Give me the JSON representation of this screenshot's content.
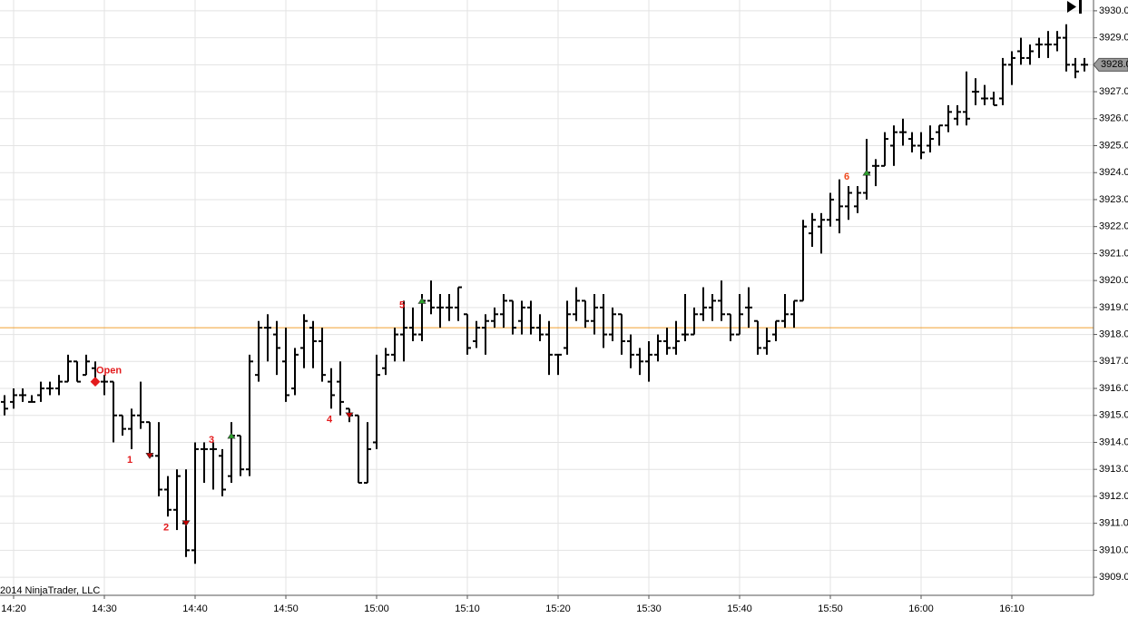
{
  "chart_data": {
    "type": "ohlc",
    "x": [
      "14:19",
      "14:20",
      "14:21",
      "14:22",
      "14:23",
      "14:24",
      "14:25",
      "14:26",
      "14:27",
      "14:28",
      "14:29",
      "14:30",
      "14:31",
      "14:32",
      "14:33",
      "14:34",
      "14:35",
      "14:36",
      "14:37",
      "14:38",
      "14:39",
      "14:40",
      "14:41",
      "14:42",
      "14:43",
      "14:44",
      "14:45",
      "14:46",
      "14:47",
      "14:48",
      "14:49",
      "14:50",
      "14:51",
      "14:52",
      "14:53",
      "14:54",
      "14:55",
      "14:56",
      "14:57",
      "14:58",
      "14:59",
      "15:00",
      "15:01",
      "15:02",
      "15:03",
      "15:04",
      "15:05",
      "15:06",
      "15:07",
      "15:08",
      "15:09",
      "15:10",
      "15:11",
      "15:12",
      "15:13",
      "15:14",
      "15:15",
      "15:16",
      "15:17",
      "15:18",
      "15:19",
      "15:20",
      "15:21",
      "15:22",
      "15:23",
      "15:24",
      "15:25",
      "15:26",
      "15:27",
      "15:28",
      "15:29",
      "15:30",
      "15:31",
      "15:32",
      "15:33",
      "15:34",
      "15:35",
      "15:36",
      "15:37",
      "15:38",
      "15:39",
      "15:40",
      "15:41",
      "15:42",
      "15:43",
      "15:44",
      "15:45",
      "15:46",
      "15:47",
      "15:48",
      "15:49",
      "15:50",
      "15:51",
      "15:52",
      "15:53",
      "15:54",
      "15:55",
      "15:56",
      "15:57",
      "15:58",
      "15:59",
      "16:00",
      "16:01",
      "16:02",
      "16:03",
      "16:04",
      "16:05",
      "16:06",
      "16:07",
      "16:08",
      "16:09",
      "16:10",
      "16:11",
      "16:12",
      "16:13",
      "16:14",
      "16:15",
      "16:16",
      "16:17",
      "16:18"
    ],
    "open": [
      3915.5,
      3915.5,
      3915.75,
      3915.5,
      3915.75,
      3916,
      3916,
      3916.25,
      3917,
      3916.5,
      3916.75,
      3916.25,
      3916.25,
      3915,
      3914.5,
      3915,
      3914.75,
      3913.5,
      3912.25,
      3911.5,
      3911,
      3910,
      3913.75,
      3913.75,
      3913.5,
      3912.75,
      3914.25,
      3913,
      3916.5,
      3918.25,
      3918,
      3917,
      3916,
      3917.5,
      3918.25,
      3917.75,
      3916.25,
      3916.25,
      3915.25,
      3915,
      3912.5,
      3914,
      3916.75,
      3917.25,
      3918,
      3918.25,
      3918,
      3919.25,
      3919,
      3919,
      3919,
      3918.75,
      3917.75,
      3918.25,
      3918.5,
      3918.75,
      3919.25,
      3918.5,
      3919,
      3918.25,
      3918,
      3917.25,
      3917.5,
      3918.75,
      3919.25,
      3918.5,
      3919,
      3918,
      3918.75,
      3917.75,
      3917.25,
      3917,
      3917.25,
      3917.75,
      3917.5,
      3918,
      3918,
      3918.75,
      3919,
      3919.25,
      3918.75,
      3918,
      3919,
      3918.5,
      3917.5,
      3918,
      3918.5,
      3918.75,
      3919.25,
      3921.75,
      3922,
      3922.25,
      3922.25,
      3922.75,
      3922.75,
      3923.25,
      3924.25,
      3924.25,
      3925,
      3925.5,
      3925.25,
      3925,
      3925,
      3925.5,
      3925.75,
      3926,
      3926.25,
      3927,
      3926.75,
      3926.75,
      3926.75,
      3928,
      3928.5,
      3928.25,
      3928.75,
      3928.75,
      3928.75,
      3929,
      3928,
      3928
    ],
    "high": [
      3915.75,
      3916,
      3916,
      3915.75,
      3916.25,
      3916.25,
      3916.5,
      3917.25,
      3917,
      3917.25,
      3917,
      3916.5,
      3916.25,
      3915,
      3915.25,
      3916.25,
      3914.75,
      3914.75,
      3912.75,
      3913,
      3913,
      3914,
      3914,
      3914,
      3913.75,
      3914.75,
      3914.25,
      3917.25,
      3918.5,
      3918.75,
      3918.5,
      3918.25,
      3917.5,
      3918.75,
      3918.5,
      3918.25,
      3916.75,
      3917,
      3915.25,
      3915,
      3914.75,
      3917.25,
      3917.5,
      3918.25,
      3919.25,
      3919,
      3919.5,
      3920,
      3919.5,
      3919.5,
      3919.75,
      3918.75,
      3918.5,
      3918.75,
      3919,
      3919.5,
      3919.25,
      3919.25,
      3919.25,
      3918.75,
      3918.5,
      3917.25,
      3919.25,
      3919.75,
      3919.25,
      3919.5,
      3919.5,
      3919,
      3918.75,
      3918,
      3917.5,
      3917.75,
      3918,
      3918.25,
      3918.5,
      3919.5,
      3919,
      3919.75,
      3919.5,
      3920,
      3918.75,
      3919.5,
      3919.75,
      3918.5,
      3918.25,
      3918.5,
      3919.5,
      3919.25,
      3922.25,
      3922.5,
      3922.5,
      3923.25,
      3923.75,
      3923.5,
      3923.5,
      3925.25,
      3924.5,
      3925.5,
      3925.75,
      3926,
      3925.5,
      3925.5,
      3925.75,
      3925.75,
      3926.5,
      3926.5,
      3927.75,
      3927.5,
      3927.25,
      3927,
      3928.25,
      3928.5,
      3929,
      3928.75,
      3929,
      3929.25,
      3929.25,
      3929.5,
      3928.25,
      3928.25
    ],
    "low": [
      3915,
      3915.25,
      3915.5,
      3915.5,
      3915.5,
      3915.75,
      3915.75,
      3916.25,
      3916.25,
      3916.5,
      3916.25,
      3915.75,
      3914,
      3914.25,
      3913.75,
      3914.5,
      3913.5,
      3912,
      3911.25,
      3910.75,
      3909.75,
      3909.5,
      3912.5,
      3912.25,
      3912,
      3912.5,
      3912.75,
      3912.75,
      3916.25,
      3917,
      3916.5,
      3915.5,
      3915.75,
      3916.75,
      3916.75,
      3916.25,
      3915.25,
      3915,
      3914.75,
      3912.5,
      3912.5,
      3913.75,
      3916.5,
      3917,
      3917,
      3917.75,
      3917.75,
      3918.75,
      3918.25,
      3918.5,
      3918.5,
      3917.25,
      3917.5,
      3917.25,
      3918.25,
      3918.25,
      3918,
      3918,
      3918,
      3917.75,
      3916.5,
      3916.5,
      3917.25,
      3918.5,
      3918.25,
      3918,
      3917.5,
      3917.75,
      3917.25,
      3916.75,
      3916.5,
      3916.25,
      3917,
      3917.25,
      3917.25,
      3917.75,
      3918,
      3918.5,
      3918.5,
      3918.5,
      3917.75,
      3918,
      3918.25,
      3917.25,
      3917.25,
      3917.75,
      3918.25,
      3918.25,
      3919.25,
      3921.25,
      3921,
      3922,
      3921.75,
      3922.25,
      3922.5,
      3923,
      3923.5,
      3924.25,
      3924.25,
      3925,
      3924.75,
      3924.5,
      3924.75,
      3925,
      3925.5,
      3925.75,
      3925.75,
      3926.5,
      3926.5,
      3926.5,
      3926.5,
      3927.25,
      3928,
      3928,
      3928.25,
      3928.25,
      3928.5,
      3927.75,
      3927.5,
      3927.75
    ],
    "close": [
      3915.25,
      3915.75,
      3915.75,
      3915.5,
      3916,
      3916,
      3916.25,
      3917,
      3916.25,
      3917,
      3916.25,
      3916.25,
      3915,
      3914.5,
      3915,
      3914.75,
      3913.5,
      3912.25,
      3911.5,
      3912.75,
      3910,
      3913.75,
      3913.75,
      3913.75,
      3912.25,
      3914.25,
      3913,
      3917,
      3918.25,
      3918.25,
      3917.5,
      3915.75,
      3917.25,
      3918.5,
      3917.75,
      3916.5,
      3915.75,
      3915.5,
      3915,
      3912.5,
      3913.75,
      3916.5,
      3917.25,
      3918,
      3918.25,
      3918,
      3919.25,
      3919,
      3919,
      3919,
      3919.75,
      3917.5,
      3918.25,
      3918.5,
      3918.75,
      3919.25,
      3918.25,
      3919,
      3918.25,
      3918,
      3917.25,
      3917.25,
      3918.75,
      3919.25,
      3918.5,
      3919,
      3918,
      3918.75,
      3917.75,
      3917.25,
      3917,
      3917.25,
      3917.75,
      3917.5,
      3917.75,
      3918,
      3918.75,
      3919,
      3919.25,
      3918.75,
      3918,
      3918.75,
      3919,
      3917.5,
      3917.75,
      3918.5,
      3918.75,
      3919.25,
      3922,
      3922.25,
      3922.25,
      3923,
      3922.75,
      3923.25,
      3923.25,
      3924,
      3924.25,
      3925.25,
      3925.5,
      3925.5,
      3925,
      3924.75,
      3925.25,
      3925.75,
      3926.25,
      3926.25,
      3926,
      3927,
      3926.75,
      3926.5,
      3928,
      3928.25,
      3928.25,
      3928.5,
      3928.75,
      3928.75,
      3929,
      3928,
      3927.75,
      3928
    ],
    "color": "#000000",
    "xlim": [
      "14:19",
      "16:19"
    ],
    "ylim": [
      3908.33,
      3930.4
    ],
    "xticks": [
      "14:20",
      "14:30",
      "14:40",
      "14:50",
      "15:00",
      "15:10",
      "15:20",
      "15:30",
      "15:40",
      "15:50",
      "16:00",
      "16:10"
    ],
    "yticks": [
      {
        "value": 3909,
        "label": "3909.0"
      },
      {
        "value": 3910,
        "label": "3910.0"
      },
      {
        "value": 3911,
        "label": "3911.0"
      },
      {
        "value": 3912,
        "label": "3912.0"
      },
      {
        "value": 3913,
        "label": "3913.0"
      },
      {
        "value": 3914,
        "label": "3914.0"
      },
      {
        "value": 3915,
        "label": "3915.0"
      },
      {
        "value": 3916,
        "label": "3916.0"
      },
      {
        "value": 3917,
        "label": "3917.0"
      },
      {
        "value": 3918,
        "label": "3918.0"
      },
      {
        "value": 3919,
        "label": "3919.0"
      },
      {
        "value": 3920,
        "label": "3920.0"
      },
      {
        "value": 3921,
        "label": "3921.0"
      },
      {
        "value": 3922,
        "label": "3922.0"
      },
      {
        "value": 3923,
        "label": "3923.0"
      },
      {
        "value": 3924,
        "label": "3924.0"
      },
      {
        "value": 3925,
        "label": "3925.0"
      },
      {
        "value": 3926,
        "label": "3926.0"
      },
      {
        "value": 3927,
        "label": "3927.0"
      },
      {
        "value": 3928,
        "label": "3928.0"
      },
      {
        "value": 3929,
        "label": "3929.0"
      },
      {
        "value": 3930,
        "label": "3930.0"
      }
    ],
    "grid": true,
    "reference_line": {
      "value": 3918.25,
      "color": "#f0a030"
    },
    "last_price": {
      "value": 3928,
      "label": "3928.0"
    },
    "annotations": [
      {
        "label": "Open",
        "x": "14:29",
        "value": 3916.25,
        "marker": "diamond",
        "color": "#e31a1c",
        "label_color": "#e31a1c"
      },
      {
        "label": "1",
        "x": "14:35",
        "value": 3913.5,
        "marker": "down",
        "color": "#c00000",
        "label_color": "#e31a1c"
      },
      {
        "label": "2",
        "x": "14:39",
        "value": 3911,
        "marker": "down",
        "color": "#c00000",
        "label_color": "#e31a1c"
      },
      {
        "label": "3",
        "x": "14:44",
        "value": 3914.25,
        "marker": "up",
        "color": "#2ca02c",
        "label_color": "#e31a1c"
      },
      {
        "label": "4",
        "x": "14:57",
        "value": 3915,
        "marker": "down",
        "color": "#c00000",
        "label_color": "#e31a1c"
      },
      {
        "label": "5",
        "x": "15:05",
        "value": 3919.25,
        "marker": "up",
        "color": "#2ca02c",
        "label_color": "#e31a1c"
      },
      {
        "label": "6",
        "x": "15:54",
        "value": 3924,
        "marker": "up",
        "color": "#2ca02c",
        "label_color": "#f04a1d"
      }
    ],
    "copyright": "2014 NinjaTrader, LLC"
  }
}
